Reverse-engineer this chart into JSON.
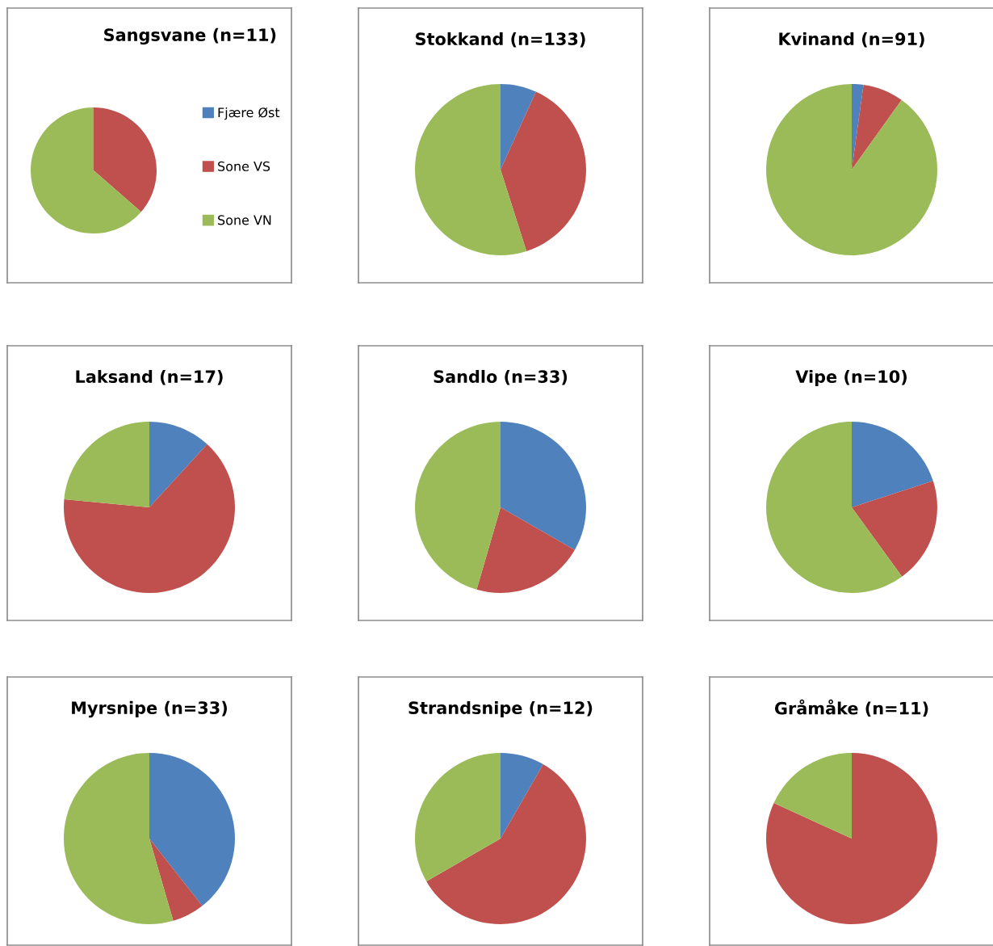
{
  "chart_data": [
    {
      "type": "pie",
      "title": "Sangsvane (n=11)",
      "categories": [
        "Fjære Øst",
        "Sone VS",
        "Sone VN"
      ],
      "values": [
        0,
        36.4,
        63.6
      ],
      "colors": [
        "#4f81bd",
        "#c0504d",
        "#9bbb59"
      ],
      "legend": "right"
    },
    {
      "type": "pie",
      "title": "Stokkand (n=133)",
      "categories": [
        null,
        null,
        null
      ],
      "values": [
        6.8,
        38.3,
        54.9
      ],
      "colors": [
        "#4f81bd",
        "#c0504d",
        "#9bbb59"
      ]
    },
    {
      "type": "pie",
      "title": "Kvinand (n=91)",
      "categories": [
        null,
        null,
        null
      ],
      "values": [
        2.2,
        7.7,
        90.1
      ],
      "colors": [
        "#4f81bd",
        "#c0504d",
        "#9bbb59"
      ]
    },
    {
      "type": "pie",
      "title": "Laksand (n=17)",
      "categories": [
        null,
        null,
        null
      ],
      "values": [
        11.8,
        64.7,
        23.5
      ],
      "colors": [
        "#4f81bd",
        "#c0504d",
        "#9bbb59"
      ]
    },
    {
      "type": "pie",
      "title": "Sandlo (n=33)",
      "categories": [
        null,
        null,
        null
      ],
      "values": [
        33.3,
        21.2,
        45.5
      ],
      "colors": [
        "#4f81bd",
        "#c0504d",
        "#9bbb59"
      ]
    },
    {
      "type": "pie",
      "title": "Vipe (n=10)",
      "categories": [
        null,
        null,
        null
      ],
      "values": [
        20,
        20,
        60
      ],
      "colors": [
        "#4f81bd",
        "#c0504d",
        "#9bbb59"
      ]
    },
    {
      "type": "pie",
      "title": "Myrsnipe (n=33)",
      "categories": [
        null,
        null,
        null
      ],
      "values": [
        39.4,
        6.1,
        54.5
      ],
      "colors": [
        "#4f81bd",
        "#c0504d",
        "#9bbb59"
      ]
    },
    {
      "type": "pie",
      "title": "Strandsnipe (n=12)",
      "categories": [
        null,
        null,
        null
      ],
      "values": [
        8.3,
        58.3,
        33.3
      ],
      "colors": [
        "#4f81bd",
        "#c0504d",
        "#9bbb59"
      ]
    },
    {
      "type": "pie",
      "title": "Gråmåke (n=11)",
      "categories": [
        null,
        null,
        null
      ],
      "values": [
        0,
        81.8,
        18.2
      ],
      "colors": [
        "#4f81bd",
        "#c0504d",
        "#9bbb59"
      ]
    }
  ]
}
